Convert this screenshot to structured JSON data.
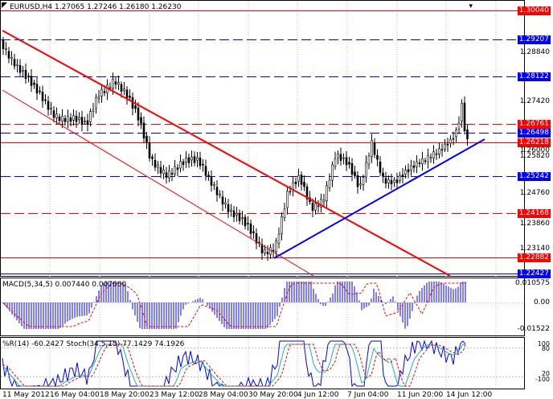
{
  "symbol_header": {
    "symbol": "EURUSD,H4",
    "ohlc": "1.27065 1.27246 1.26180 1.26230"
  },
  "macd": {
    "label": "MACD(5,34,5) 0.007440 0.007660",
    "axis": [
      "0.010575",
      "0.00",
      "-0.01522"
    ]
  },
  "oscillator": {
    "label": "%R(14) -60.2427  Stoch(34,5,15) 77.1429 74.1926",
    "axis": [
      "100",
      "80",
      "20",
      "-100"
    ]
  },
  "price_axis": {
    "ticks": [
      "1.28840",
      "1.27420",
      "1.26000",
      "1.25820",
      "1.24760",
      "1.23860",
      "1.23140"
    ],
    "levels": [
      {
        "value": "1.30040",
        "color": "#ff0000"
      },
      {
        "value": "1.29207",
        "color": "#0000ff"
      },
      {
        "value": "1.28122",
        "color": "#0000ff"
      },
      {
        "value": "1.26761",
        "color": "#ff0000"
      },
      {
        "value": "1.26498",
        "color": "#0000ff"
      },
      {
        "value": "1.26218",
        "color": "#ff0000"
      },
      {
        "value": "1.25242",
        "color": "#0000ff"
      },
      {
        "value": "1.24168",
        "color": "#ff0000"
      },
      {
        "value": "1.22882",
        "color": "#ff0000"
      },
      {
        "value": "1.22427",
        "color": "#0000ff"
      }
    ]
  },
  "time_axis": [
    "11 May 2012",
    "16 May 04:00",
    "18 May 20:00",
    "23 May 12:00",
    "28 May 04:00",
    "30 May 20:00",
    "4 Jun 12:00",
    "7 Jun 04:00",
    "11 Jun 20:00",
    "14 Jun 12:00"
  ],
  "colors": {
    "bull": "#0000ff",
    "bear": "#0000ff",
    "red_line": "#ff0000",
    "blue_line": "#0000ff",
    "grid": "#c0c0c0"
  }
}
